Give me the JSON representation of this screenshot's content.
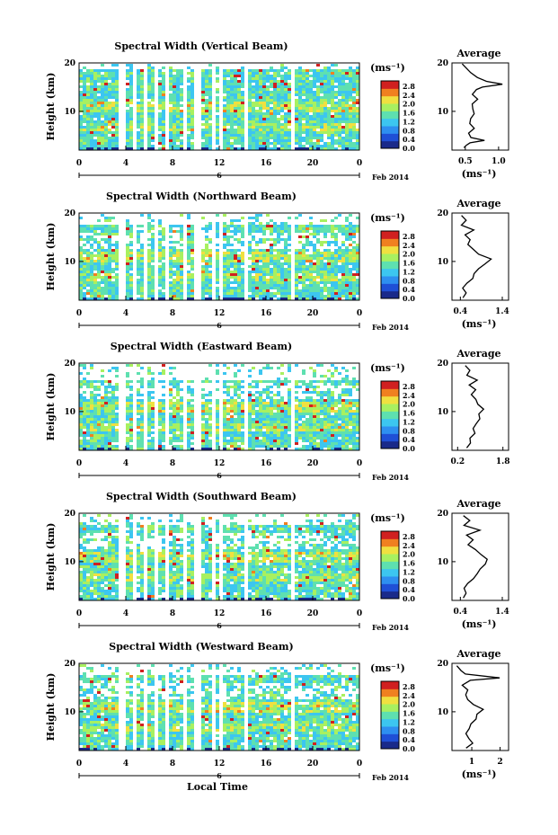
{
  "chart_data": [
    {
      "type": "heatmap",
      "title": "Spectral Width (Vertical Beam)",
      "ylabel": "Height (km)",
      "xticks": [
        "0",
        "4",
        "8",
        "12",
        "16",
        "20",
        "0"
      ],
      "yticks": [
        "10",
        "20"
      ],
      "date_label": "Feb 2014",
      "day_label": "6",
      "colorbar": {
        "unit": "(ms⁻¹)",
        "ticks": [
          "2.8",
          "2.4",
          "2.0",
          "1.6",
          "1.2",
          "0.8",
          "0.4",
          "0.0"
        ]
      },
      "average": {
        "title": "Average",
        "xlabel": "(ms⁻¹)",
        "xticks": [
          "0.5",
          "1.0"
        ],
        "yticks": [
          "10",
          "20"
        ],
        "ylim": [
          2,
          20
        ],
        "xlim": [
          0.3,
          1.15
        ],
        "profile": [
          [
            0.46,
            2.5
          ],
          [
            0.5,
            3
          ],
          [
            0.58,
            3.5
          ],
          [
            0.8,
            4
          ],
          [
            0.6,
            4.6
          ],
          [
            0.55,
            5.5
          ],
          [
            0.62,
            6.5
          ],
          [
            0.58,
            7.5
          ],
          [
            0.6,
            8.5
          ],
          [
            0.65,
            9.5
          ],
          [
            0.6,
            10.5
          ],
          [
            0.62,
            11.5
          ],
          [
            0.67,
            12.5
          ],
          [
            0.6,
            13.5
          ],
          [
            0.65,
            14.5
          ],
          [
            0.75,
            15
          ],
          [
            1.05,
            15.6
          ],
          [
            0.8,
            16.2
          ],
          [
            0.66,
            17
          ],
          [
            0.58,
            18
          ],
          [
            0.5,
            19
          ],
          [
            0.45,
            19.8
          ]
        ]
      }
    },
    {
      "type": "heatmap",
      "title": "Spectral Width (Northward Beam)",
      "ylabel": "Height (km)",
      "xticks": [
        "0",
        "4",
        "8",
        "12",
        "16",
        "20",
        "0"
      ],
      "yticks": [
        "10",
        "20"
      ],
      "date_label": "Feb 2014",
      "day_label": "6",
      "colorbar": {
        "unit": "(ms⁻¹)",
        "ticks": [
          "2.8",
          "2.4",
          "2.0",
          "1.6",
          "1.2",
          "0.8",
          "0.4",
          "0.0"
        ]
      },
      "average": {
        "title": "Average",
        "xlabel": "(ms⁻¹)",
        "xticks": [
          "0.4",
          "1.4"
        ],
        "yticks": [
          "10",
          "20"
        ],
        "ylim": [
          2,
          20
        ],
        "xlim": [
          0.2,
          1.55
        ],
        "profile": [
          [
            0.45,
            2.5
          ],
          [
            0.55,
            3.5
          ],
          [
            0.45,
            4.5
          ],
          [
            0.55,
            5.5
          ],
          [
            0.7,
            6.5
          ],
          [
            0.75,
            7.5
          ],
          [
            0.85,
            8.5
          ],
          [
            1.0,
            9.5
          ],
          [
            1.15,
            10.5
          ],
          [
            0.85,
            11.5
          ],
          [
            0.7,
            12.5
          ],
          [
            0.6,
            13.5
          ],
          [
            0.65,
            14.5
          ],
          [
            0.5,
            15.5
          ],
          [
            0.7,
            16.5
          ],
          [
            0.45,
            17.5
          ],
          [
            0.55,
            18.5
          ],
          [
            0.4,
            19.5
          ]
        ]
      }
    },
    {
      "type": "heatmap",
      "title": "Spectral Width (Eastward Beam)",
      "ylabel": "Height (km)",
      "xticks": [
        "0",
        "4",
        "8",
        "12",
        "16",
        "20",
        "0"
      ],
      "yticks": [
        "10",
        "20"
      ],
      "date_label": "Feb 2014",
      "day_label": "6",
      "colorbar": {
        "unit": "(ms⁻¹)",
        "ticks": [
          "2.8",
          "2.4",
          "2.0",
          "1.6",
          "1.2",
          "0.8",
          "0.4",
          "0.0"
        ]
      },
      "average": {
        "title": "Average",
        "xlabel": "",
        "xticks": [
          "0.2",
          "1.8"
        ],
        "yticks": [
          "10",
          "20"
        ],
        "ylim": [
          2,
          20
        ],
        "xlim": [
          0.0,
          2.0
        ],
        "profile": [
          [
            0.5,
            2.5
          ],
          [
            0.7,
            3.5
          ],
          [
            0.6,
            4.5
          ],
          [
            0.8,
            5.5
          ],
          [
            0.75,
            6.5
          ],
          [
            0.9,
            7.5
          ],
          [
            1.0,
            8.5
          ],
          [
            0.95,
            9.5
          ],
          [
            1.1,
            10.5
          ],
          [
            0.9,
            11.5
          ],
          [
            0.8,
            12.5
          ],
          [
            0.7,
            13.5
          ],
          [
            0.8,
            14.5
          ],
          [
            0.6,
            15.5
          ],
          [
            0.9,
            16.5
          ],
          [
            0.5,
            17.5
          ],
          [
            0.6,
            18.5
          ],
          [
            0.5,
            19.5
          ]
        ]
      }
    },
    {
      "type": "heatmap",
      "title": "Spectral Width (Southward Beam)",
      "ylabel": "Height (km)",
      "xticks": [
        "0",
        "4",
        "8",
        "12",
        "16",
        "20",
        "0"
      ],
      "yticks": [
        "10",
        "20"
      ],
      "date_label": "Feb 2014",
      "day_label": "6",
      "colorbar": {
        "unit": "(ms⁻¹)",
        "ticks": [
          "2.8",
          "2.4",
          "2.0",
          "1.6",
          "1.2",
          "0.8",
          "0.4",
          "0.0"
        ]
      },
      "average": {
        "title": "Average",
        "xlabel": "(ms⁻¹)",
        "xticks": [
          "0.4",
          "1.4"
        ],
        "yticks": [
          "10",
          "20"
        ],
        "ylim": [
          2,
          20
        ],
        "xlim": [
          0.2,
          1.55
        ],
        "profile": [
          [
            0.45,
            2.5
          ],
          [
            0.55,
            3.5
          ],
          [
            0.5,
            4.5
          ],
          [
            0.6,
            5.5
          ],
          [
            0.7,
            6.5
          ],
          [
            0.8,
            7.5
          ],
          [
            0.9,
            8.5
          ],
          [
            1.0,
            9.5
          ],
          [
            1.05,
            10.5
          ],
          [
            0.9,
            11.5
          ],
          [
            0.75,
            12.5
          ],
          [
            0.6,
            13.5
          ],
          [
            0.7,
            14.5
          ],
          [
            0.55,
            15.5
          ],
          [
            0.85,
            16.5
          ],
          [
            0.5,
            17.5
          ],
          [
            0.6,
            18.5
          ],
          [
            0.45,
            19.5
          ]
        ]
      }
    },
    {
      "type": "heatmap",
      "title": "Spectral Width (Westward Beam)",
      "ylabel": "Height (km)",
      "xticks": [
        "0",
        "4",
        "8",
        "12",
        "16",
        "20",
        "0"
      ],
      "yticks": [
        "10",
        "20"
      ],
      "date_label": "Feb 2014",
      "day_label": "6",
      "colorbar": {
        "unit": "(ms⁻¹)",
        "ticks": [
          "2.8",
          "2.4",
          "2.0",
          "1.6",
          "1.2",
          "0.8",
          "0.4",
          "0.0"
        ]
      },
      "average": {
        "title": "Average",
        "xlabel": "(ms⁻¹)",
        "xticks": [
          "1",
          "2"
        ],
        "yticks": [
          "10",
          "20"
        ],
        "ylim": [
          2,
          20
        ],
        "xlim": [
          0.3,
          2.3
        ],
        "profile": [
          [
            0.8,
            2.5
          ],
          [
            1.0,
            3.5
          ],
          [
            0.85,
            4.5
          ],
          [
            0.8,
            5.5
          ],
          [
            0.9,
            6.5
          ],
          [
            0.95,
            7.5
          ],
          [
            1.1,
            8.5
          ],
          [
            1.2,
            9.5
          ],
          [
            1.4,
            10.5
          ],
          [
            1.1,
            11.5
          ],
          [
            0.9,
            12.5
          ],
          [
            0.75,
            13.5
          ],
          [
            0.85,
            14.5
          ],
          [
            0.7,
            15.5
          ],
          [
            0.9,
            16.5
          ],
          [
            1.95,
            17
          ],
          [
            0.8,
            17.8
          ],
          [
            0.6,
            18.5
          ],
          [
            0.5,
            19.5
          ]
        ]
      }
    }
  ],
  "xlabel_bottom": "Local Time",
  "colors": {
    "cmap": [
      "#1a2a8a",
      "#1f4fd6",
      "#2e8ff0",
      "#3cc6f0",
      "#5ee0b0",
      "#a8f060",
      "#f0e040",
      "#f08020",
      "#d02020"
    ]
  }
}
